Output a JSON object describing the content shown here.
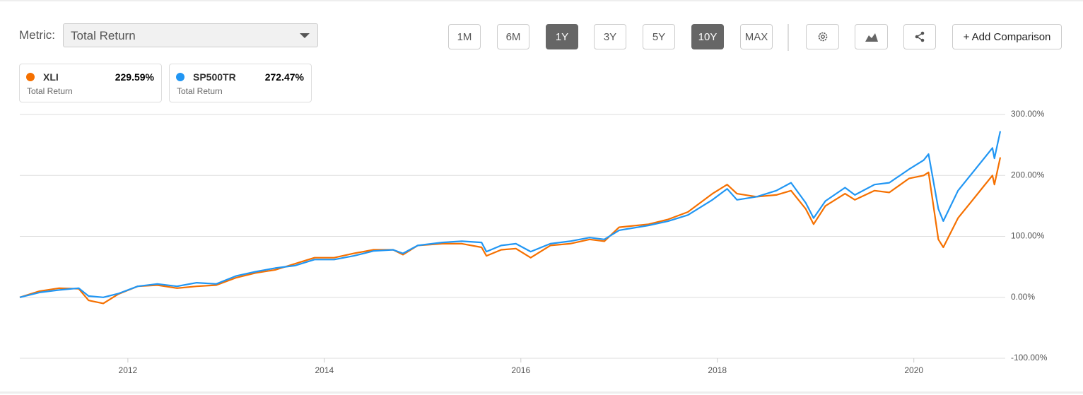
{
  "toolbar": {
    "metric_label": "Metric:",
    "metric_value": "Total Return",
    "ranges": [
      "1M",
      "6M",
      "1Y",
      "3Y",
      "5Y",
      "10Y",
      "MAX"
    ],
    "active": [
      "1Y",
      "10Y"
    ],
    "add_comparison": "+ Add Comparison"
  },
  "chart_data": {
    "type": "line",
    "subtitle": "Total Return",
    "x": [
      2010.9,
      2011.1,
      2011.3,
      2011.5,
      2011.6,
      2011.75,
      2011.9,
      2012.1,
      2012.3,
      2012.5,
      2012.7,
      2012.9,
      2013.1,
      2013.3,
      2013.5,
      2013.7,
      2013.9,
      2014.1,
      2014.3,
      2014.5,
      2014.7,
      2014.8,
      2014.95,
      2015.2,
      2015.4,
      2015.6,
      2015.65,
      2015.8,
      2015.95,
      2016.1,
      2016.3,
      2016.5,
      2016.7,
      2016.85,
      2017.0,
      2017.3,
      2017.5,
      2017.7,
      2017.95,
      2018.1,
      2018.2,
      2018.4,
      2018.6,
      2018.75,
      2018.9,
      2018.98,
      2019.1,
      2019.3,
      2019.4,
      2019.6,
      2019.75,
      2019.95,
      2020.1,
      2020.15,
      2020.25,
      2020.3,
      2020.45,
      2020.6,
      2020.7,
      2020.8,
      2020.82,
      2020.88
    ],
    "series": [
      {
        "name": "XLI",
        "color": "#f57000",
        "value_label": "229.59%",
        "values": [
          0,
          10,
          15,
          14,
          -5,
          -10,
          5,
          18,
          20,
          15,
          18,
          20,
          32,
          40,
          45,
          55,
          65,
          65,
          72,
          78,
          78,
          70,
          85,
          88,
          88,
          82,
          68,
          78,
          80,
          65,
          85,
          88,
          95,
          92,
          115,
          120,
          128,
          140,
          170,
          185,
          170,
          165,
          168,
          175,
          145,
          120,
          150,
          170,
          160,
          175,
          172,
          195,
          200,
          205,
          95,
          82,
          130,
          160,
          180,
          200,
          185,
          229.59
        ]
      },
      {
        "name": "SP500TR",
        "color": "#2196f3",
        "value_label": "272.47%",
        "values": [
          0,
          8,
          12,
          15,
          2,
          0,
          6,
          18,
          22,
          18,
          24,
          22,
          35,
          42,
          48,
          52,
          62,
          62,
          68,
          76,
          78,
          72,
          85,
          90,
          92,
          90,
          75,
          85,
          88,
          75,
          88,
          92,
          98,
          95,
          110,
          118,
          125,
          135,
          160,
          178,
          160,
          165,
          175,
          188,
          155,
          130,
          158,
          180,
          168,
          185,
          188,
          210,
          225,
          235,
          145,
          125,
          175,
          205,
          225,
          245,
          228,
          272.47
        ]
      }
    ],
    "xlim": [
      2010.9,
      2020.88
    ],
    "xticks": [
      2012,
      2014,
      2016,
      2018,
      2020
    ],
    "ylim": [
      -100,
      300
    ],
    "yticks": [
      {
        "value": -100,
        "label": "-100.00%"
      },
      {
        "value": 0,
        "label": "0.00%"
      },
      {
        "value": 100,
        "label": "100.00%"
      },
      {
        "value": 200,
        "label": "200.00%"
      },
      {
        "value": 300,
        "label": "300.00%"
      }
    ],
    "grid": true
  }
}
